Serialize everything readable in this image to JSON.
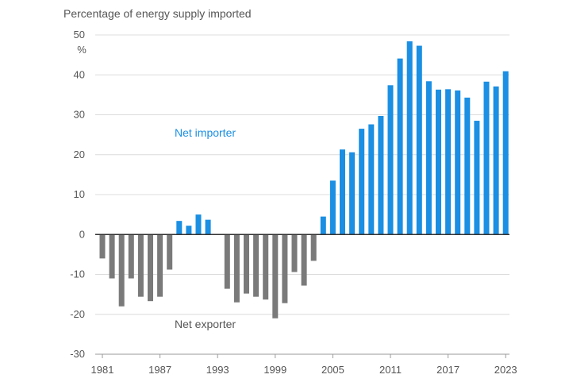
{
  "chart_data": {
    "type": "bar",
    "title": "Percentage of energy supply imported",
    "ylabel": "%",
    "xlabel": "",
    "ylim": [
      -30,
      50
    ],
    "yticks": [
      50,
      40,
      30,
      20,
      10,
      0,
      -10,
      -20,
      -30
    ],
    "xticks": [
      1981,
      1987,
      1993,
      1999,
      2005,
      2011,
      2017,
      2023
    ],
    "x": [
      1981,
      1982,
      1983,
      1984,
      1985,
      1986,
      1987,
      1988,
      1989,
      1990,
      1991,
      1992,
      1993,
      1994,
      1995,
      1996,
      1997,
      1998,
      1999,
      2000,
      2001,
      2002,
      2003,
      2004,
      2005,
      2006,
      2007,
      2008,
      2009,
      2010,
      2011,
      2012,
      2013,
      2014,
      2015,
      2016,
      2017,
      2018,
      2019,
      2020,
      2021,
      2022,
      2023
    ],
    "values": [
      -6,
      -11,
      -18,
      -11,
      -15.6,
      -16.7,
      -15.6,
      -8.8,
      3.4,
      2.2,
      5,
      3.7,
      0,
      -13.6,
      -17,
      -14.8,
      -15.6,
      -16.3,
      -21,
      -17.2,
      -9.4,
      -12.8,
      -6.6,
      4.5,
      13.5,
      21.3,
      20.6,
      26.5,
      27.6,
      29.7,
      37.4,
      44.1,
      48.4,
      47.3,
      38.4,
      36.3,
      36.4,
      36.1,
      34.3,
      28.5,
      38.3,
      37.1,
      40.9
    ],
    "grid": true,
    "annotations": [
      {
        "text": "Net importer",
        "color": "#1a8fe3"
      },
      {
        "text": "Net exporter",
        "color": "#555555"
      }
    ],
    "colors": {
      "positive": "#1a8fe3",
      "negative": "#7a7a7a",
      "grid": "#dcdcdc",
      "axis": "#333333",
      "text": "#555555"
    }
  }
}
